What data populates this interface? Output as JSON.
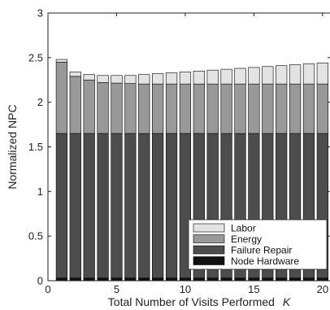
{
  "chart_data": {
    "type": "stacked-bar",
    "xlabel": "Total Number of Visits Performed",
    "xlabel_var": "K",
    "ylabel": "Normalized NPC",
    "xlim": [
      0,
      20.6
    ],
    "ylim": [
      0,
      3
    ],
    "xticks": [
      0,
      5,
      10,
      15,
      20
    ],
    "yticks": [
      0,
      0.5,
      1,
      1.5,
      2,
      2.5,
      3
    ],
    "ytick_labels": [
      "0",
      "0.5",
      "1",
      "1.5",
      "2",
      "2.5",
      "3"
    ],
    "legend_position": "bottom-right",
    "x": [
      1,
      2,
      3,
      4,
      5,
      6,
      7,
      8,
      9,
      10,
      11,
      12,
      13,
      14,
      15,
      16,
      17,
      18,
      19,
      20
    ],
    "series": [
      {
        "name": "Node Hardware",
        "color": "#111111",
        "values": [
          0.03,
          0.03,
          0.03,
          0.03,
          0.03,
          0.03,
          0.03,
          0.03,
          0.03,
          0.03,
          0.03,
          0.03,
          0.03,
          0.03,
          0.03,
          0.03,
          0.03,
          0.03,
          0.03,
          0.03
        ]
      },
      {
        "name": "Failure Repair",
        "color": "#4d4d4d",
        "values": [
          1.62,
          1.62,
          1.62,
          1.62,
          1.62,
          1.62,
          1.62,
          1.62,
          1.62,
          1.62,
          1.62,
          1.62,
          1.62,
          1.62,
          1.62,
          1.62,
          1.62,
          1.62,
          1.62,
          1.62
        ]
      },
      {
        "name": "Energy",
        "color": "#999999",
        "values": [
          0.8,
          0.64,
          0.6,
          0.57,
          0.565,
          0.56,
          0.555,
          0.555,
          0.555,
          0.555,
          0.555,
          0.555,
          0.555,
          0.555,
          0.555,
          0.555,
          0.555,
          0.555,
          0.555,
          0.555
        ]
      },
      {
        "name": "Labor",
        "color": "#e3e3e3",
        "values": [
          0.03,
          0.05,
          0.06,
          0.08,
          0.085,
          0.09,
          0.105,
          0.115,
          0.125,
          0.135,
          0.145,
          0.155,
          0.165,
          0.175,
          0.185,
          0.195,
          0.205,
          0.215,
          0.225,
          0.235
        ]
      }
    ]
  }
}
